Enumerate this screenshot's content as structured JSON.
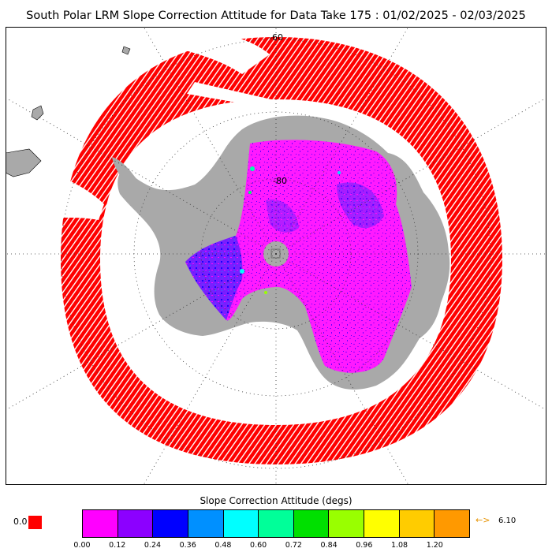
{
  "title": "South Polar LRM Slope Correction Attitude for Data Take 175 : 01/02/2025 - 02/03/2025",
  "map": {
    "lat_labels": [
      "-60",
      "-80"
    ],
    "colors": {
      "ocean": "#ffffff",
      "land": "#a9a9a9",
      "frame": "#000000",
      "track": "#ff0000"
    }
  },
  "colorbar": {
    "title": "Slope Correction Attitude (degs)",
    "zero_label": "0.0",
    "zero_color": "#ff0000",
    "over_arrow": "←>",
    "over_value": "6.10",
    "colors": [
      "#ff00ff",
      "#8c00ff",
      "#0000ff",
      "#0090ff",
      "#00ffff",
      "#00ff99",
      "#00e000",
      "#99ff00",
      "#ffff00",
      "#ffcc00",
      "#ff9900"
    ],
    "ticks": [
      "0.00",
      "0.12",
      "0.24",
      "0.36",
      "0.48",
      "0.60",
      "0.72",
      "0.84",
      "0.96",
      "1.08",
      "1.20"
    ]
  }
}
